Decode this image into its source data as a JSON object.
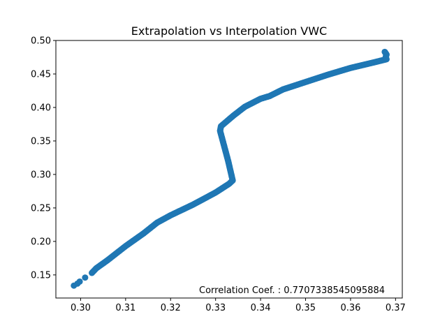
{
  "chart_data": {
    "type": "scatter",
    "title": "Extrapolation vs Interpolation VWC",
    "xlabel": "",
    "ylabel": "",
    "xlim": [
      0.2945,
      0.3715
    ],
    "ylim": [
      0.1155,
      0.5
    ],
    "x_ticks": [
      0.3,
      0.31,
      0.32,
      0.33,
      0.34,
      0.35,
      0.36,
      0.37
    ],
    "x_tick_labels": [
      "0.30",
      "0.31",
      "0.32",
      "0.33",
      "0.34",
      "0.35",
      "0.36",
      "0.37"
    ],
    "y_ticks": [
      0.15,
      0.2,
      0.25,
      0.3,
      0.35,
      0.4,
      0.45,
      0.5
    ],
    "y_tick_labels": [
      "0.15",
      "0.20",
      "0.25",
      "0.30",
      "0.35",
      "0.40",
      "0.45",
      "0.50"
    ],
    "grid": false,
    "annotation": "Correlation Coef. : 0.7707338545095884",
    "color": "#1f77b4",
    "series": [
      {
        "isolated_points": [
          [
            0.2985,
            0.134
          ],
          [
            0.2993,
            0.137
          ],
          [
            0.2998,
            0.14
          ],
          [
            0.301,
            0.146
          ]
        ],
        "path": [
          [
            0.3025,
            0.153
          ],
          [
            0.3035,
            0.16
          ],
          [
            0.306,
            0.172
          ],
          [
            0.31,
            0.193
          ],
          [
            0.314,
            0.212
          ],
          [
            0.317,
            0.228
          ],
          [
            0.32,
            0.239
          ],
          [
            0.325,
            0.255
          ],
          [
            0.33,
            0.273
          ],
          [
            0.333,
            0.286
          ],
          [
            0.3338,
            0.291
          ],
          [
            0.3328,
            0.32
          ],
          [
            0.3318,
            0.345
          ],
          [
            0.331,
            0.365
          ],
          [
            0.3312,
            0.372
          ],
          [
            0.334,
            0.388
          ],
          [
            0.3365,
            0.401
          ],
          [
            0.34,
            0.413
          ],
          [
            0.342,
            0.417
          ],
          [
            0.345,
            0.427
          ],
          [
            0.35,
            0.438
          ],
          [
            0.355,
            0.449
          ],
          [
            0.36,
            0.459
          ],
          [
            0.365,
            0.467
          ],
          [
            0.368,
            0.472
          ],
          [
            0.3678,
            0.475
          ],
          [
            0.368,
            0.479
          ],
          [
            0.3676,
            0.483
          ]
        ]
      }
    ]
  }
}
